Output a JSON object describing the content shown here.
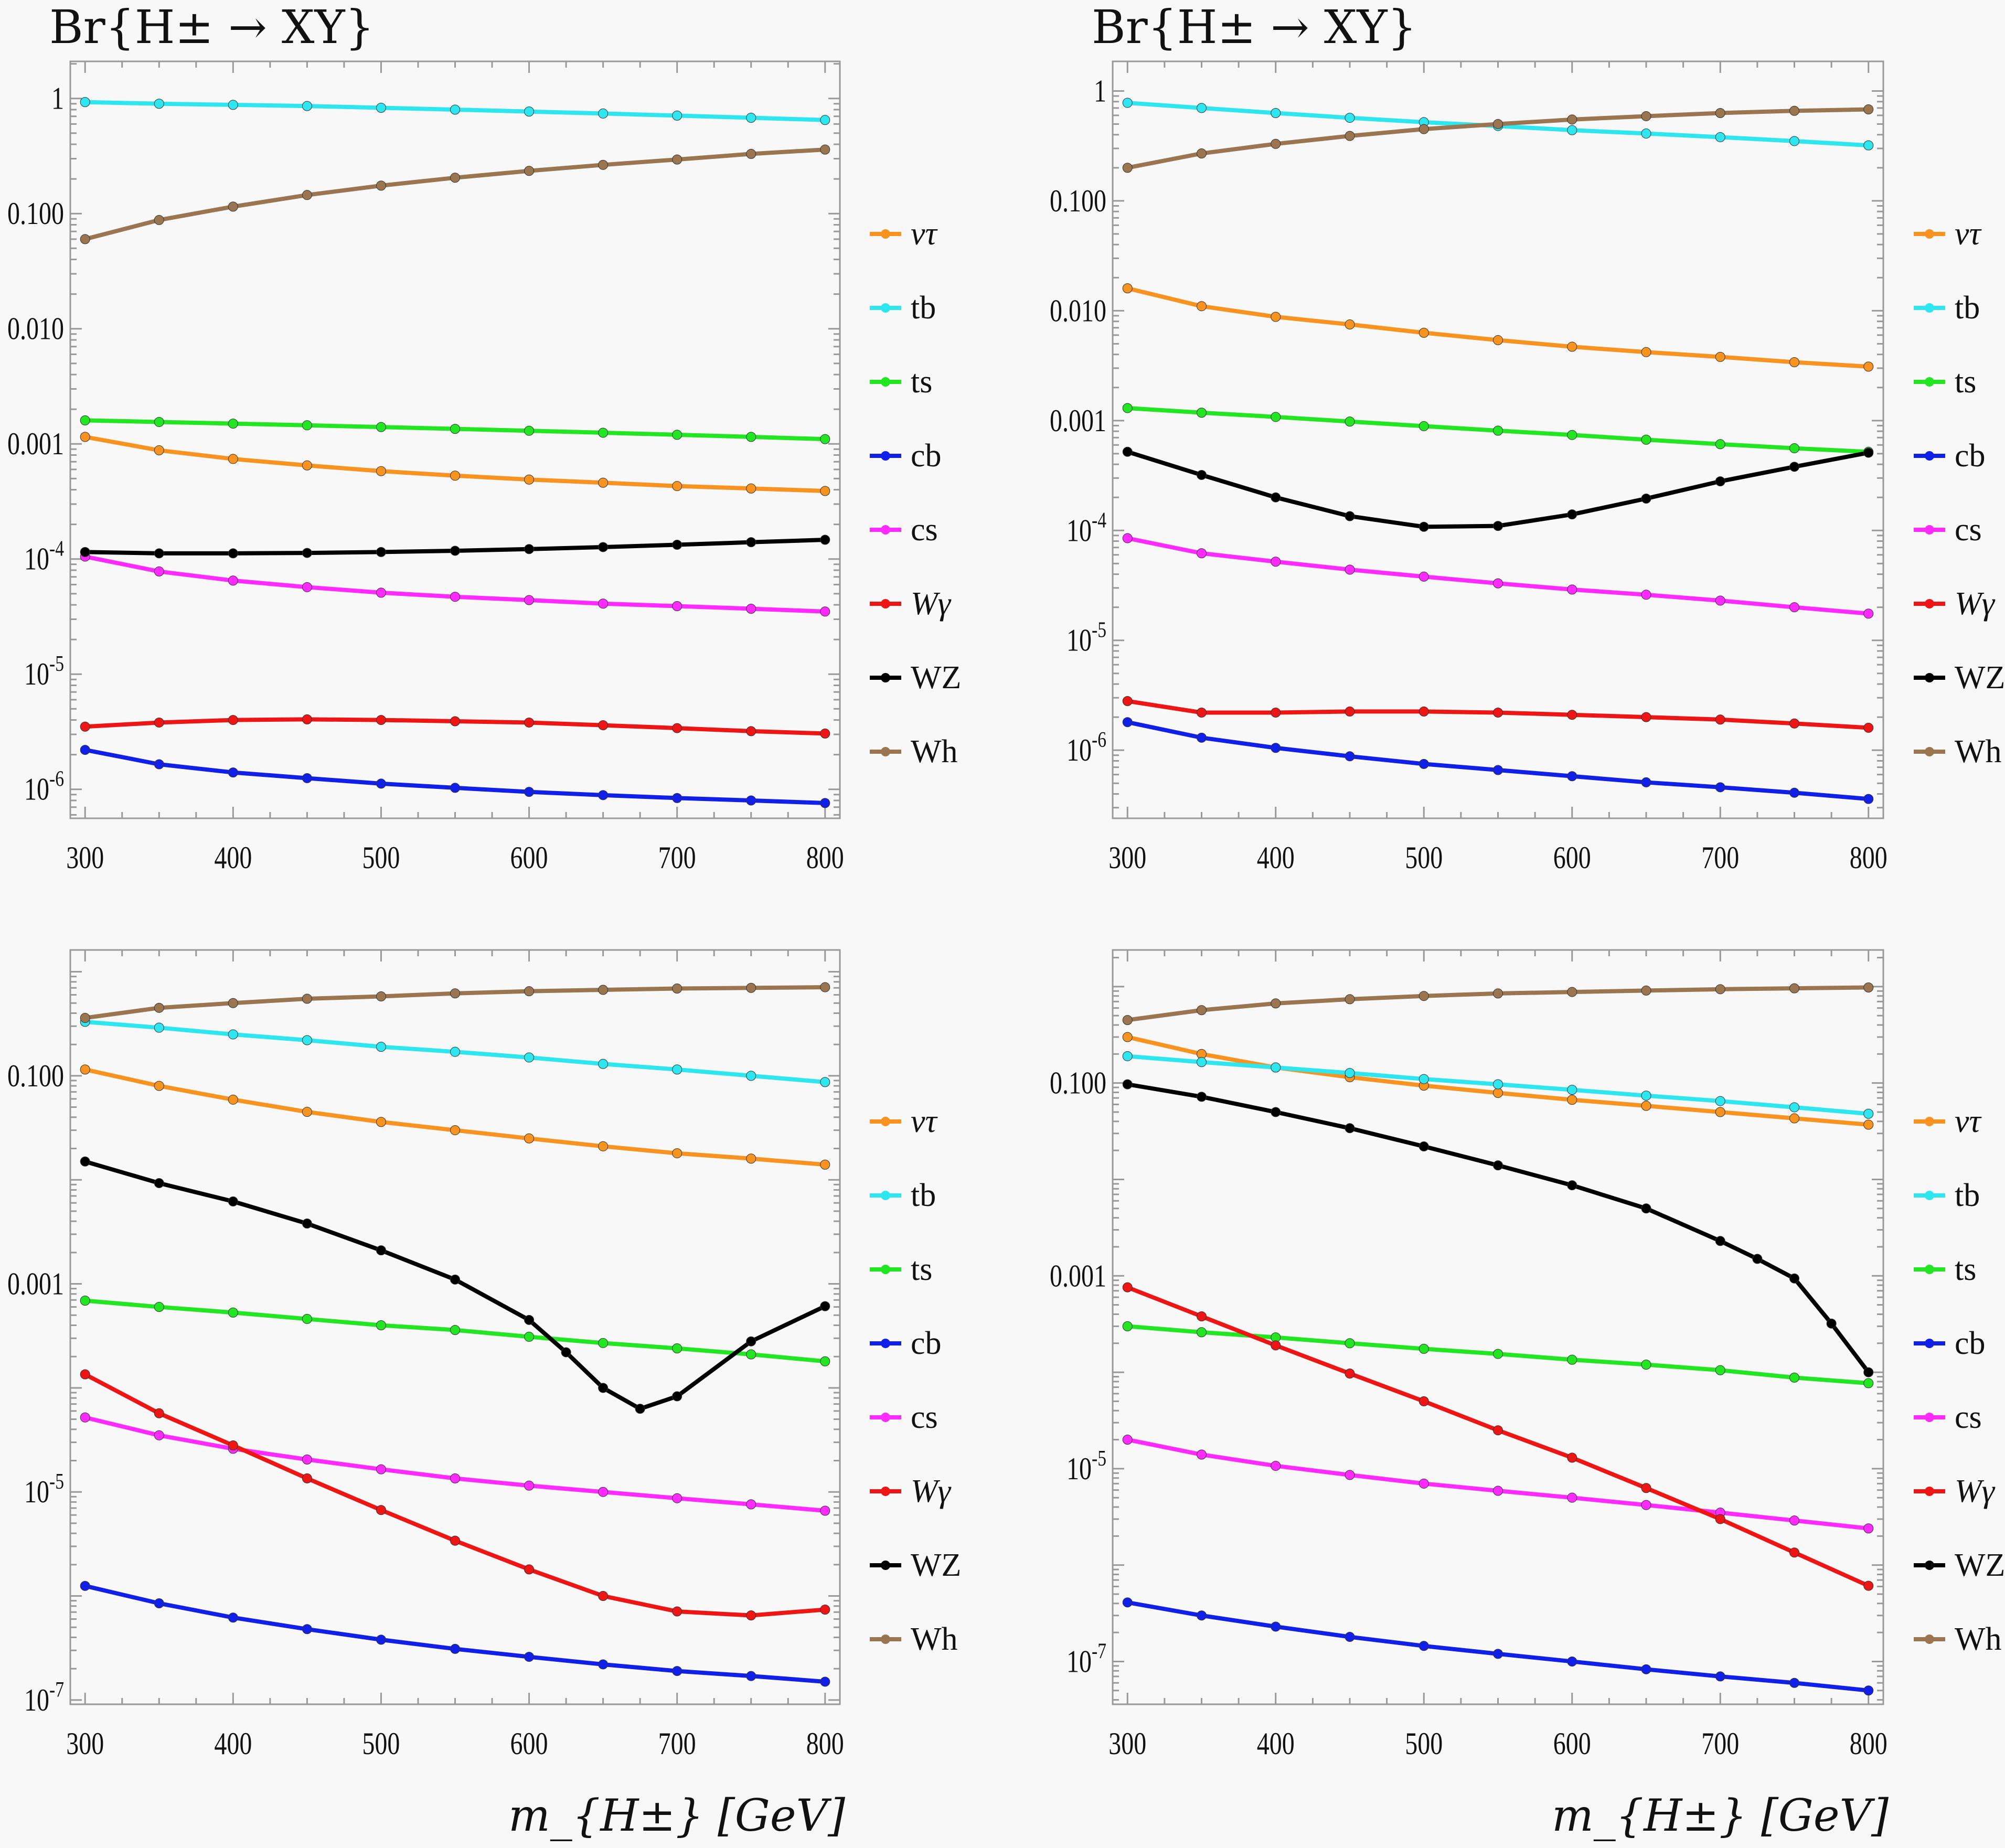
{
  "chart_data": [
    {
      "type": "line",
      "title": "Br{H± → XY}",
      "xlabel": "",
      "ylabel": "",
      "yscale": "log",
      "xlim": [
        290,
        810
      ],
      "ylim": [
        5.6e-07,
        2.1
      ],
      "xticks": [
        300,
        400,
        500,
        600,
        700,
        800
      ],
      "yticks": [
        {
          "v": 1,
          "label": "1"
        },
        {
          "v": 0.1,
          "label": "0.100"
        },
        {
          "v": 0.01,
          "label": "0.010"
        },
        {
          "v": 0.001,
          "label": "0.001"
        },
        {
          "v": 0.0001,
          "label": "10",
          "exp": "-4"
        },
        {
          "v": 1e-05,
          "label": "10",
          "exp": "-5"
        },
        {
          "v": 1e-06,
          "label": "10",
          "exp": "-6"
        }
      ],
      "legend_position": "right",
      "x": [
        300,
        350,
        400,
        450,
        500,
        550,
        600,
        650,
        700,
        750,
        800
      ],
      "series": [
        {
          "name": "ντ",
          "color": "#f7931e",
          "values": [
            0.00115,
            0.00088,
            0.00074,
            0.00065,
            0.00058,
            0.00053,
            0.00049,
            0.00046,
            0.00043,
            0.00041,
            0.00039
          ]
        },
        {
          "name": "tb",
          "color": "#2ee6f0",
          "values": [
            0.93,
            0.9,
            0.88,
            0.86,
            0.83,
            0.8,
            0.77,
            0.74,
            0.71,
            0.68,
            0.65
          ]
        },
        {
          "name": "ts",
          "color": "#22e622",
          "values": [
            0.0016,
            0.00155,
            0.0015,
            0.00145,
            0.0014,
            0.00135,
            0.0013,
            0.00125,
            0.0012,
            0.00115,
            0.0011
          ]
        },
        {
          "name": "cb",
          "color": "#1020e8",
          "values": [
            2.2e-06,
            1.65e-06,
            1.4e-06,
            1.25e-06,
            1.12e-06,
            1.03e-06,
            9.5e-07,
            8.9e-07,
            8.4e-07,
            8e-07,
            7.6e-07
          ]
        },
        {
          "name": "cs",
          "color": "#ff2aff",
          "values": [
            0.000105,
            7.8e-05,
            6.5e-05,
            5.7e-05,
            5.1e-05,
            4.7e-05,
            4.4e-05,
            4.1e-05,
            3.9e-05,
            3.7e-05,
            3.5e-05
          ]
        },
        {
          "name": "Wγ",
          "color": "#ee1515",
          "values": [
            3.5e-06,
            3.8e-06,
            4e-06,
            4.05e-06,
            4e-06,
            3.9e-06,
            3.8e-06,
            3.6e-06,
            3.4e-06,
            3.2e-06,
            3.05e-06
          ]
        },
        {
          "name": "WZ",
          "color": "#000000",
          "values": [
            0.000115,
            0.000112,
            0.000112,
            0.000113,
            0.000115,
            0.000118,
            0.000122,
            0.000127,
            0.000133,
            0.00014,
            0.000147
          ]
        },
        {
          "name": "Wh",
          "color": "#9a7550",
          "values": [
            0.06,
            0.088,
            0.115,
            0.145,
            0.175,
            0.205,
            0.235,
            0.265,
            0.295,
            0.33,
            0.36
          ]
        }
      ]
    },
    {
      "type": "line",
      "title": "Br{H± → XY}",
      "xlabel": "",
      "ylabel": "",
      "yscale": "log",
      "xlim": [
        290,
        810
      ],
      "ylim": [
        2.4e-07,
        1.86
      ],
      "xticks": [
        300,
        400,
        500,
        600,
        700,
        800
      ],
      "yticks": [
        {
          "v": 1,
          "label": "1"
        },
        {
          "v": 0.1,
          "label": "0.100"
        },
        {
          "v": 0.01,
          "label": "0.010"
        },
        {
          "v": 0.001,
          "label": "0.001"
        },
        {
          "v": 0.0001,
          "label": "10",
          "exp": "-4"
        },
        {
          "v": 1e-05,
          "label": "10",
          "exp": "-5"
        },
        {
          "v": 1e-06,
          "label": "10",
          "exp": "-6"
        }
      ],
      "legend_position": "right",
      "x": [
        300,
        350,
        400,
        450,
        500,
        550,
        600,
        650,
        700,
        750,
        800
      ],
      "series": [
        {
          "name": "ντ",
          "color": "#f7931e",
          "values": [
            0.016,
            0.011,
            0.0088,
            0.0075,
            0.0063,
            0.0054,
            0.0047,
            0.0042,
            0.0038,
            0.0034,
            0.0031
          ]
        },
        {
          "name": "tb",
          "color": "#2ee6f0",
          "values": [
            0.78,
            0.7,
            0.63,
            0.57,
            0.52,
            0.48,
            0.44,
            0.41,
            0.38,
            0.35,
            0.32
          ]
        },
        {
          "name": "ts",
          "color": "#22e622",
          "values": [
            0.0013,
            0.00118,
            0.00108,
            0.00098,
            0.00089,
            0.00081,
            0.00074,
            0.00067,
            0.00061,
            0.00056,
            0.00052
          ]
        },
        {
          "name": "cb",
          "color": "#1020e8",
          "values": [
            1.8e-06,
            1.3e-06,
            1.05e-06,
            8.8e-07,
            7.5e-07,
            6.6e-07,
            5.8e-07,
            5.1e-07,
            4.6e-07,
            4.1e-07,
            3.6e-07
          ]
        },
        {
          "name": "cs",
          "color": "#ff2aff",
          "values": [
            8.5e-05,
            6.2e-05,
            5.2e-05,
            4.4e-05,
            3.8e-05,
            3.3e-05,
            2.9e-05,
            2.6e-05,
            2.3e-05,
            2e-05,
            1.75e-05
          ]
        },
        {
          "name": "Wγ",
          "color": "#ee1515",
          "values": [
            2.8e-06,
            2.2e-06,
            2.2e-06,
            2.25e-06,
            2.25e-06,
            2.2e-06,
            2.1e-06,
            2e-06,
            1.9e-06,
            1.75e-06,
            1.6e-06
          ]
        },
        {
          "name": "WZ",
          "color": "#000000",
          "values": [
            0.00052,
            0.00032,
            0.0002,
            0.000135,
            0.000108,
            0.00011,
            0.00014,
            0.000195,
            0.00028,
            0.00038,
            0.00051
          ]
        },
        {
          "name": "Wh",
          "color": "#9a7550",
          "values": [
            0.2,
            0.27,
            0.33,
            0.39,
            0.45,
            0.5,
            0.55,
            0.59,
            0.63,
            0.66,
            0.68
          ]
        }
      ]
    },
    {
      "type": "line",
      "title": "",
      "xlabel": "m_{H±} [GeV]",
      "ylabel": "",
      "yscale": "log",
      "xlim": [
        290,
        810
      ],
      "ylim": [
        9.1e-08,
        1.62
      ],
      "xticks": [
        300,
        400,
        500,
        600,
        700,
        800
      ],
      "yticks": [
        {
          "v": 0.1,
          "label": "0.100"
        },
        {
          "v": 0.001,
          "label": "0.001"
        },
        {
          "v": 1e-05,
          "label": "10",
          "exp": "-5"
        },
        {
          "v": 1e-07,
          "label": "10",
          "exp": "-7"
        }
      ],
      "legend_position": "right",
      "x": [
        300,
        350,
        400,
        450,
        500,
        550,
        600,
        650,
        700,
        750,
        800
      ],
      "series": [
        {
          "name": "ντ",
          "color": "#f7931e",
          "values": [
            0.115,
            0.08,
            0.059,
            0.045,
            0.036,
            0.03,
            0.025,
            0.021,
            0.018,
            0.016,
            0.014
          ]
        },
        {
          "name": "tb",
          "color": "#2ee6f0",
          "values": [
            0.33,
            0.29,
            0.25,
            0.22,
            0.19,
            0.17,
            0.15,
            0.13,
            0.115,
            0.1,
            0.087
          ]
        },
        {
          "name": "ts",
          "color": "#22e622",
          "values": [
            0.00069,
            0.0006,
            0.00053,
            0.00046,
            0.0004,
            0.00036,
            0.00031,
            0.00027,
            0.00024,
            0.00021,
            0.00018
          ]
        },
        {
          "name": "cb",
          "color": "#1020e8",
          "values": [
            1.25e-06,
            8.5e-07,
            6.2e-07,
            4.8e-07,
            3.8e-07,
            3.1e-07,
            2.6e-07,
            2.2e-07,
            1.9e-07,
            1.7e-07,
            1.5e-07
          ]
        },
        {
          "name": "cs",
          "color": "#ff2aff",
          "values": [
            5.2e-05,
            3.5e-05,
            2.6e-05,
            2.05e-05,
            1.65e-05,
            1.35e-05,
            1.15e-05,
            1e-05,
            8.7e-06,
            7.6e-06,
            6.6e-06
          ]
        },
        {
          "name": "Wγ",
          "color": "#ee1515",
          "values": [
            0.000135,
            5.7e-05,
            2.8e-05,
            1.35e-05,
            6.7e-06,
            3.4e-06,
            1.8e-06,
            1e-06,
            7.1e-07,
            6.5e-07,
            7.4e-07
          ]
        },
        {
          "name": "WZ",
          "color": "#000000",
          "x": [
            300,
            350,
            400,
            450,
            500,
            550,
            600,
            625,
            650,
            675,
            700,
            750,
            800
          ],
          "values": [
            0.015,
            0.0093,
            0.0062,
            0.0038,
            0.0021,
            0.0011,
            0.00045,
            0.00022,
            0.0001,
            6.3e-05,
            8.3e-05,
            0.00028,
            0.00061
          ]
        },
        {
          "name": "Wh",
          "color": "#9a7550",
          "values": [
            0.36,
            0.45,
            0.5,
            0.55,
            0.58,
            0.62,
            0.65,
            0.67,
            0.69,
            0.7,
            0.71
          ]
        }
      ]
    },
    {
      "type": "line",
      "title": "",
      "xlabel": "m_{H±} [GeV]",
      "ylabel": "",
      "yscale": "log",
      "xlim": [
        290,
        810
      ],
      "ylim": [
        3.6e-08,
        2.4
      ],
      "xticks": [
        300,
        400,
        500,
        600,
        700,
        800
      ],
      "yticks": [
        {
          "v": 0.1,
          "label": "0.100"
        },
        {
          "v": 0.001,
          "label": "0.001"
        },
        {
          "v": 1e-05,
          "label": "10",
          "exp": "-5"
        },
        {
          "v": 1e-07,
          "label": "10",
          "exp": "-7"
        }
      ],
      "legend_position": "right",
      "x": [
        300,
        350,
        400,
        450,
        500,
        550,
        600,
        650,
        700,
        750,
        800
      ],
      "series": [
        {
          "name": "ντ",
          "color": "#f7931e",
          "values": [
            0.3,
            0.2,
            0.145,
            0.115,
            0.094,
            0.079,
            0.067,
            0.058,
            0.05,
            0.043,
            0.037
          ]
        },
        {
          "name": "tb",
          "color": "#2ee6f0",
          "values": [
            0.19,
            0.165,
            0.145,
            0.127,
            0.11,
            0.097,
            0.085,
            0.074,
            0.065,
            0.056,
            0.048
          ]
        },
        {
          "name": "ts",
          "color": "#22e622",
          "values": [
            0.0003,
            0.00026,
            0.00023,
            0.0002,
            0.000175,
            0.000155,
            0.000135,
            0.00012,
            0.000105,
            8.8e-05,
            7.7e-05
          ]
        },
        {
          "name": "cb",
          "color": "#1020e8",
          "values": [
            4.1e-07,
            3e-07,
            2.3e-07,
            1.8e-07,
            1.45e-07,
            1.2e-07,
            1e-07,
            8.3e-08,
            7e-08,
            6e-08,
            5e-08
          ]
        },
        {
          "name": "cs",
          "color": "#ff2aff",
          "values": [
            2e-05,
            1.4e-05,
            1.07e-05,
            8.6e-06,
            7e-06,
            5.9e-06,
            5e-06,
            4.2e-06,
            3.5e-06,
            2.9e-06,
            2.4e-06
          ]
        },
        {
          "name": "Wγ",
          "color": "#ee1515",
          "values": [
            0.00076,
            0.00038,
            0.00019,
            9.7e-05,
            5e-05,
            2.5e-05,
            1.3e-05,
            6.3e-06,
            3e-06,
            1.35e-06,
            6.1e-07
          ]
        },
        {
          "name": "WZ",
          "color": "#000000",
          "x": [
            300,
            350,
            400,
            450,
            500,
            550,
            600,
            650,
            700,
            725,
            750,
            775,
            800
          ],
          "values": [
            0.097,
            0.072,
            0.05,
            0.034,
            0.022,
            0.014,
            0.0087,
            0.005,
            0.0023,
            0.0015,
            0.00094,
            0.00032,
            0.0001
          ]
        },
        {
          "name": "Wh",
          "color": "#9a7550",
          "values": [
            0.45,
            0.57,
            0.67,
            0.74,
            0.8,
            0.85,
            0.88,
            0.91,
            0.94,
            0.96,
            0.98
          ]
        }
      ]
    }
  ]
}
